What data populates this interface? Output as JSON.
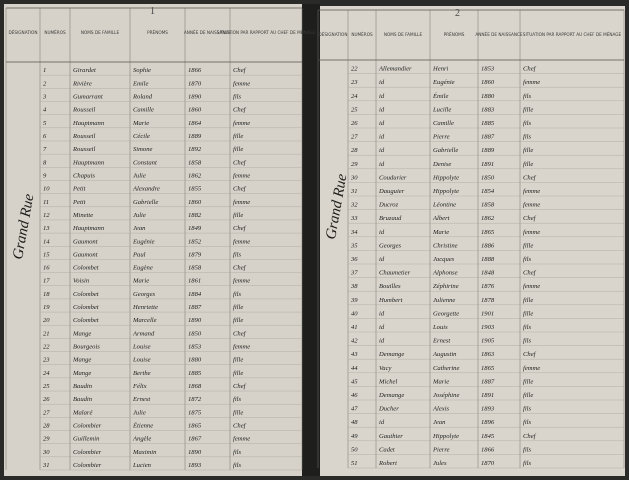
{
  "left_page": {
    "page_number": "1",
    "street": "Grand Rue",
    "headers": [
      "DÉSIGNATION",
      "NUMÉROS",
      "NOMS DE FAMILLE",
      "PRÉNOMS",
      "ANNÉE DE NAISSANCE",
      "SITUATION PAR RAPPORT AU CHEF DE MÉNAGE"
    ],
    "rows": [
      [
        "1",
        "Girardet",
        "Sophie",
        "1866",
        "Chef"
      ],
      [
        "2",
        "Rivière",
        "Emile",
        "1870",
        "femme"
      ],
      [
        "3",
        "Gumarrant",
        "Roland",
        "1890",
        "fils"
      ],
      [
        "4",
        "Rousseil",
        "Camille",
        "1860",
        "Chef"
      ],
      [
        "5",
        "Hauptmann",
        "Marie",
        "1864",
        "femme"
      ],
      [
        "6",
        "Rousseil",
        "Cécile",
        "1889",
        "fille"
      ],
      [
        "7",
        "Rousseil",
        "Simone",
        "1892",
        "fille"
      ],
      [
        "8",
        "Hauptmann",
        "Constant",
        "1858",
        "Chef"
      ],
      [
        "9",
        "Chapuis",
        "Julie",
        "1862",
        "femme"
      ],
      [
        "10",
        "Petit",
        "Alexandre",
        "1855",
        "Chef"
      ],
      [
        "11",
        "Petit",
        "Gabrielle",
        "1860",
        "femme"
      ],
      [
        "12",
        "Minette",
        "Julie",
        "1882",
        "fille"
      ],
      [
        "13",
        "Hauptmann",
        "Jean",
        "1849",
        "Chef"
      ],
      [
        "14",
        "Gaumont",
        "Eugénie",
        "1852",
        "femme"
      ],
      [
        "15",
        "Gaumont",
        "Paul",
        "1879",
        "fils"
      ],
      [
        "16",
        "Colombet",
        "Eugène",
        "1858",
        "Chef"
      ],
      [
        "17",
        "Voisin",
        "Marie",
        "1861",
        "femme"
      ],
      [
        "18",
        "Colombet",
        "Georges",
        "1884",
        "fils"
      ],
      [
        "19",
        "Colombet",
        "Henriette",
        "1887",
        "fille"
      ],
      [
        "20",
        "Colombet",
        "Marcelle",
        "1890",
        "fille"
      ],
      [
        "21",
        "Mange",
        "Armand",
        "1850",
        "Chef"
      ],
      [
        "22",
        "Bourgeois",
        "Louise",
        "1853",
        "femme"
      ],
      [
        "23",
        "Mange",
        "Louise",
        "1880",
        "fille"
      ],
      [
        "24",
        "Mange",
        "Berthe",
        "1885",
        "fille"
      ],
      [
        "25",
        "Baudin",
        "Félix",
        "1868",
        "Chef"
      ],
      [
        "26",
        "Baudin",
        "Ernest",
        "1872",
        "fils"
      ],
      [
        "27",
        "Malaré",
        "Julie",
        "1875",
        "fille"
      ],
      [
        "28",
        "Colombier",
        "Étienne",
        "1865",
        "Chef"
      ],
      [
        "29",
        "Guillemin",
        "Angèle",
        "1867",
        "femme"
      ],
      [
        "30",
        "Colombier",
        "Maximin",
        "1890",
        "fils"
      ],
      [
        "31",
        "Colombier",
        "Lucien",
        "1893",
        "fils"
      ]
    ]
  },
  "right_page": {
    "page_number": "2",
    "street": "Grand Rue",
    "headers": [
      "DÉSIGNATION",
      "NUMÉROS",
      "NOMS DE FAMILLE",
      "PRÉNOMS",
      "ANNÉE DE NAISSANCE",
      "SITUATION PAR RAPPORT AU CHEF DE MÉNAGE"
    ],
    "rows": [
      [
        "22",
        "Allemandier",
        "Henri",
        "1853",
        "Chef"
      ],
      [
        "23",
        "id",
        "Eugénie",
        "1860",
        "femme"
      ],
      [
        "24",
        "id",
        "Émile",
        "1880",
        "fils"
      ],
      [
        "25",
        "id",
        "Lucille",
        "1883",
        "fille"
      ],
      [
        "26",
        "id",
        "Camille",
        "1885",
        "fils"
      ],
      [
        "27",
        "id",
        "Pierre",
        "1887",
        "fils"
      ],
      [
        "28",
        "id",
        "Gabrielle",
        "1889",
        "fille"
      ],
      [
        "29",
        "id",
        "Denise",
        "1891",
        "fille"
      ],
      [
        "30",
        "Coudurier",
        "Hippolyte",
        "1850",
        "Chef"
      ],
      [
        "31",
        "Dauguier",
        "Hippolyte",
        "1854",
        "femme"
      ],
      [
        "32",
        "Ducroz",
        "Léontine",
        "1858",
        "femme"
      ],
      [
        "33",
        "Bruzaud",
        "Albert",
        "1862",
        "Chef"
      ],
      [
        "34",
        "id",
        "Marie",
        "1865",
        "femme"
      ],
      [
        "35",
        "Georges",
        "Christine",
        "1886",
        "fille"
      ],
      [
        "36",
        "id",
        "Jacques",
        "1888",
        "fils"
      ],
      [
        "37",
        "Chaumetier",
        "Alphonse",
        "1848",
        "Chef"
      ],
      [
        "38",
        "Bouilles",
        "Zéphirine",
        "1876",
        "femme"
      ],
      [
        "39",
        "Humbert",
        "Julienne",
        "1878",
        "fille"
      ],
      [
        "40",
        "id",
        "Georgette",
        "1901",
        "fille"
      ],
      [
        "41",
        "id",
        "Louis",
        "1903",
        "fils"
      ],
      [
        "42",
        "id",
        "Ernest",
        "1905",
        "fils"
      ],
      [
        "43",
        "Demange",
        "Augustin",
        "1863",
        "Chef"
      ],
      [
        "44",
        "Vacy",
        "Catherine",
        "1865",
        "femme"
      ],
      [
        "45",
        "Michel",
        "Marie",
        "1887",
        "fille"
      ],
      [
        "46",
        "Demange",
        "Joséphine",
        "1891",
        "fille"
      ],
      [
        "47",
        "Ducher",
        "Alexis",
        "1893",
        "fils"
      ],
      [
        "48",
        "id",
        "Jean",
        "1896",
        "fils"
      ],
      [
        "49",
        "Gauthier",
        "Hippolyte",
        "1845",
        "Chef"
      ],
      [
        "50",
        "Cadet",
        "Pierre",
        "1866",
        "fils"
      ],
      [
        "51",
        "Robert",
        "Jules",
        "1870",
        "fils"
      ]
    ]
  }
}
